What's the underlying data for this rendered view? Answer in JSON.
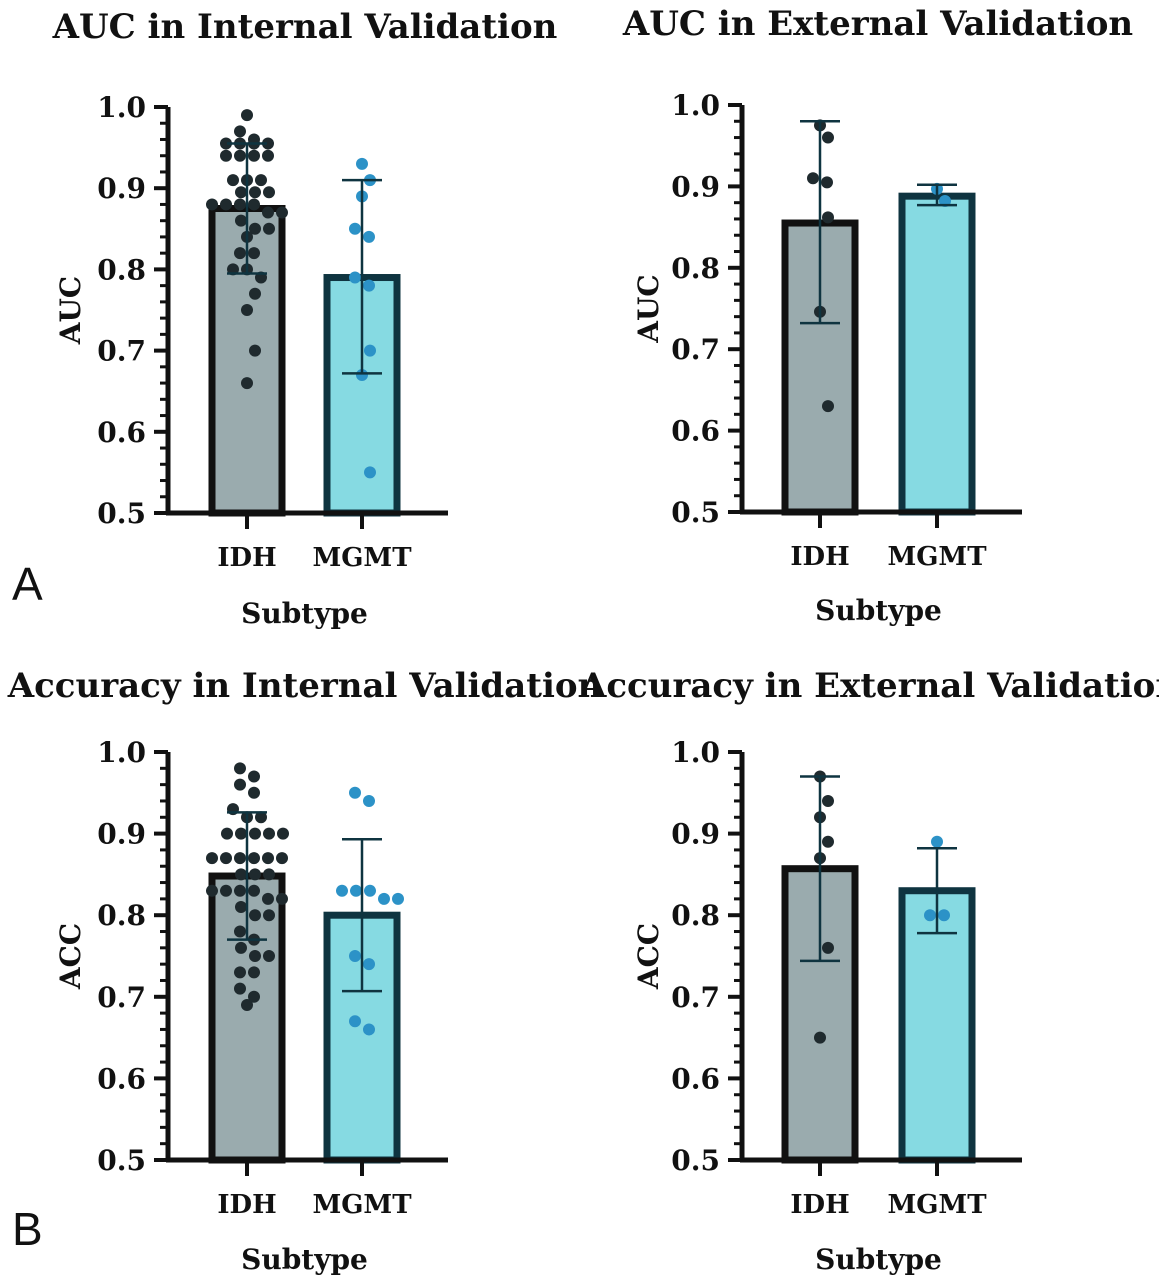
{
  "colors": {
    "idh_fill": "#9aabae",
    "idh_border": "#111111",
    "idh_points": "#1f2a2e",
    "mgmt_fill": "#86dae2",
    "mgmt_border": "#0f3440",
    "mgmt_points": "#2c92c7",
    "axis": "#111111",
    "errorbar": "#0f3440"
  },
  "panel_labels": [
    "A",
    "B"
  ],
  "chart_data": [
    {
      "type": "bar",
      "title": "AUC in Internal Validation",
      "xlabel": "Subtype",
      "ylabel": "AUC",
      "ylim": [
        0.5,
        1.0
      ],
      "yticks": [
        "0.5",
        "0.6",
        "0.7",
        "0.8",
        "0.9",
        "1.0"
      ],
      "categories": [
        "IDH",
        "MGMT"
      ],
      "values": [
        0.875,
        0.79
      ],
      "error_low": [
        0.795,
        0.672
      ],
      "error_high": [
        0.955,
        0.91
      ],
      "points": [
        [
          0.99,
          0.97,
          0.96,
          0.955,
          0.955,
          0.955,
          0.955,
          0.94,
          0.94,
          0.94,
          0.94,
          0.91,
          0.91,
          0.91,
          0.895,
          0.895,
          0.895,
          0.88,
          0.88,
          0.88,
          0.88,
          0.87,
          0.87,
          0.86,
          0.85,
          0.85,
          0.84,
          0.82,
          0.82,
          0.8,
          0.8,
          0.79,
          0.77,
          0.75,
          0.7,
          0.66
        ],
        [
          0.93,
          0.91,
          0.89,
          0.85,
          0.84,
          0.79,
          0.78,
          0.7,
          0.67,
          0.55
        ]
      ]
    },
    {
      "type": "bar",
      "title": "AUC in External Validation",
      "xlabel": "Subtype",
      "ylabel": "AUC",
      "ylim": [
        0.5,
        1.0
      ],
      "yticks": [
        "0.5",
        "0.6",
        "0.7",
        "0.8",
        "0.9",
        "1.0"
      ],
      "categories": [
        "IDH",
        "MGMT"
      ],
      "values": [
        0.855,
        0.888
      ],
      "error_low": [
        0.732,
        0.877
      ],
      "error_high": [
        0.98,
        0.902
      ],
      "points": [
        [
          0.975,
          0.96,
          0.91,
          0.905,
          0.862,
          0.746,
          0.63
        ],
        [
          0.897,
          0.882
        ]
      ]
    },
    {
      "type": "bar",
      "title": "Accuracy in Internal Validation",
      "xlabel": "Subtype",
      "ylabel": "ACC",
      "ylim": [
        0.5,
        1.0
      ],
      "yticks": [
        "0.5",
        "0.6",
        "0.7",
        "0.8",
        "0.9",
        "1.0"
      ],
      "categories": [
        "IDH",
        "MGMT"
      ],
      "values": [
        0.848,
        0.8
      ],
      "error_low": [
        0.77,
        0.707
      ],
      "error_high": [
        0.926,
        0.893
      ],
      "points": [
        [
          0.98,
          0.97,
          0.96,
          0.95,
          0.93,
          0.92,
          0.92,
          0.9,
          0.9,
          0.9,
          0.9,
          0.9,
          0.87,
          0.87,
          0.87,
          0.87,
          0.87,
          0.87,
          0.85,
          0.85,
          0.85,
          0.83,
          0.83,
          0.83,
          0.83,
          0.82,
          0.82,
          0.81,
          0.8,
          0.8,
          0.78,
          0.77,
          0.76,
          0.75,
          0.75,
          0.73,
          0.73,
          0.71,
          0.7,
          0.69
        ],
        [
          0.95,
          0.94,
          0.83,
          0.83,
          0.83,
          0.82,
          0.82,
          0.75,
          0.74,
          0.67,
          0.66
        ]
      ]
    },
    {
      "type": "bar",
      "title": "Accuracy in External Validation",
      "xlabel": "Subtype",
      "ylabel": "ACC",
      "ylim": [
        0.5,
        1.0
      ],
      "yticks": [
        "0.5",
        "0.6",
        "0.7",
        "0.8",
        "0.9",
        "1.0"
      ],
      "categories": [
        "IDH",
        "MGMT"
      ],
      "values": [
        0.857,
        0.83
      ],
      "error_low": [
        0.744,
        0.778
      ],
      "error_high": [
        0.97,
        0.882
      ],
      "points": [
        [
          0.97,
          0.94,
          0.92,
          0.89,
          0.87,
          0.76,
          0.65
        ],
        [
          0.89,
          0.8,
          0.8
        ]
      ]
    }
  ]
}
